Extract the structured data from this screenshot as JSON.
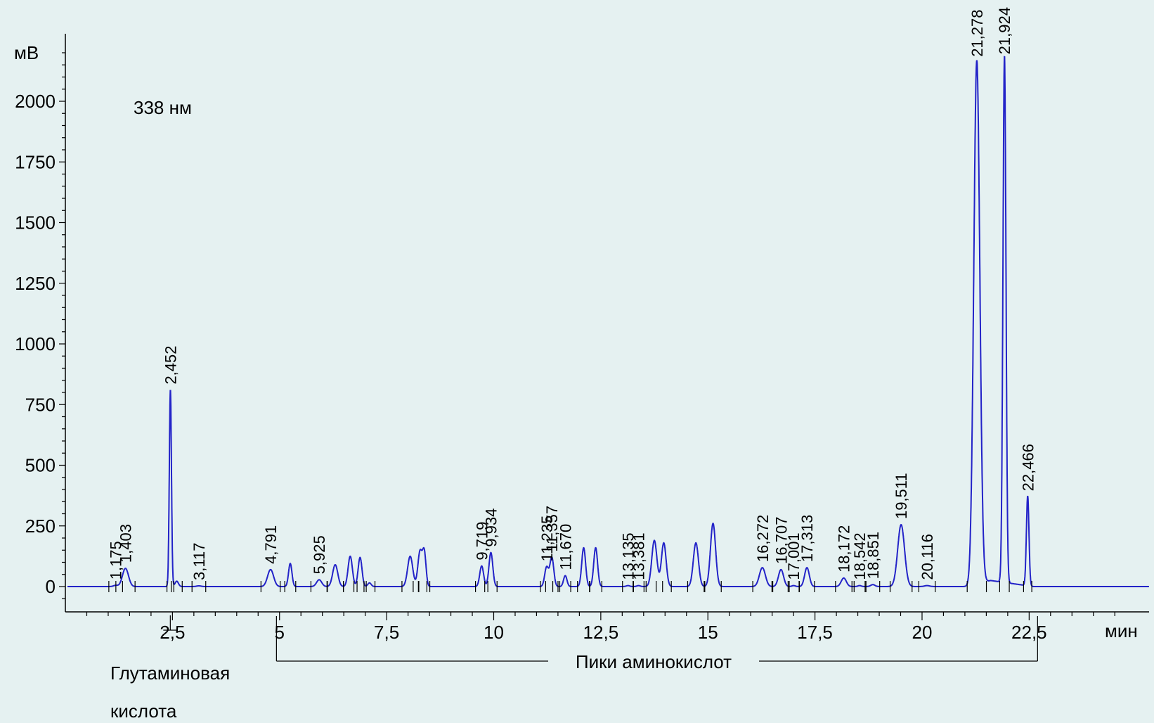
{
  "chart_data": {
    "type": "line",
    "title": "338 нм",
    "ylabel": "мВ",
    "xlabel": "мин",
    "xlim": [
      0,
      25.3
    ],
    "ylim": [
      -100,
      2300
    ],
    "x_ticks": [
      2.5,
      5,
      7.5,
      10,
      12.5,
      15,
      17.5,
      20,
      22.5
    ],
    "x_tick_labels": [
      "2,5",
      "5",
      "7,5",
      "10",
      "12,5",
      "15",
      "17,5",
      "20",
      "22,5"
    ],
    "y_ticks": [
      0,
      250,
      500,
      750,
      1000,
      1250,
      1500,
      1750,
      2000
    ],
    "y_tick_labels": [
      "0",
      "250",
      "500",
      "750",
      "1000",
      "1250",
      "1500",
      "1750",
      "2000"
    ],
    "line_color": "#2323c8",
    "peaks": [
      {
        "rt": 1.175,
        "label": "1,175",
        "height": 5,
        "width": 0.05,
        "labeled": true
      },
      {
        "rt": 1.403,
        "label": "1,403",
        "height": 75,
        "width": 0.07,
        "labeled": true
      },
      {
        "rt": 2.452,
        "label": "2,452",
        "height": 810,
        "width": 0.025,
        "labeled": true
      },
      {
        "rt": 2.6,
        "label": "",
        "height": 22,
        "width": 0.04,
        "labeled": false
      },
      {
        "rt": 3.117,
        "label": "3,117",
        "height": 3,
        "width": 0.05,
        "labeled": true
      },
      {
        "rt": 4.791,
        "label": "4,791",
        "height": 70,
        "width": 0.07,
        "labeled": true
      },
      {
        "rt": 5.25,
        "label": "",
        "height": 95,
        "width": 0.04,
        "labeled": false
      },
      {
        "rt": 5.925,
        "label": "5,925",
        "height": 28,
        "width": 0.06,
        "labeled": true
      },
      {
        "rt": 6.3,
        "label": "",
        "height": 90,
        "width": 0.06,
        "labeled": false
      },
      {
        "rt": 6.65,
        "label": "",
        "height": 125,
        "width": 0.05,
        "labeled": false
      },
      {
        "rt": 6.88,
        "label": "",
        "height": 120,
        "width": 0.045,
        "labeled": false
      },
      {
        "rt": 7.1,
        "label": "",
        "height": 15,
        "width": 0.04,
        "labeled": false
      },
      {
        "rt": 8.05,
        "label": "",
        "height": 125,
        "width": 0.06,
        "labeled": false
      },
      {
        "rt": 8.28,
        "label": "",
        "height": 145,
        "width": 0.05,
        "labeled": false
      },
      {
        "rt": 8.38,
        "label": "",
        "height": 135,
        "width": 0.04,
        "labeled": false
      },
      {
        "rt": 9.719,
        "label": "9,719",
        "height": 85,
        "width": 0.045,
        "labeled": true
      },
      {
        "rt": 9.934,
        "label": "9,934",
        "height": 140,
        "width": 0.045,
        "labeled": true
      },
      {
        "rt": 11.235,
        "label": "11,235",
        "height": 80,
        "width": 0.045,
        "labeled": true
      },
      {
        "rt": 11.357,
        "label": "11,357",
        "height": 120,
        "width": 0.045,
        "labeled": true
      },
      {
        "rt": 11.67,
        "label": "11,670",
        "height": 45,
        "width": 0.04,
        "labeled": true
      },
      {
        "rt": 12.1,
        "label": "",
        "height": 160,
        "width": 0.045,
        "labeled": false
      },
      {
        "rt": 12.38,
        "label": "",
        "height": 160,
        "width": 0.045,
        "labeled": false
      },
      {
        "rt": 13.135,
        "label": "13,135",
        "height": 4,
        "width": 0.04,
        "labeled": true
      },
      {
        "rt": 13.381,
        "label": "13,381",
        "height": 4,
        "width": 0.04,
        "labeled": true
      },
      {
        "rt": 13.75,
        "label": "",
        "height": 190,
        "width": 0.06,
        "labeled": false
      },
      {
        "rt": 13.97,
        "label": "",
        "height": 180,
        "width": 0.055,
        "labeled": false
      },
      {
        "rt": 14.72,
        "label": "",
        "height": 180,
        "width": 0.06,
        "labeled": false
      },
      {
        "rt": 15.12,
        "label": "",
        "height": 260,
        "width": 0.06,
        "labeled": false
      },
      {
        "rt": 16.272,
        "label": "16,272",
        "height": 78,
        "width": 0.07,
        "labeled": true
      },
      {
        "rt": 16.707,
        "label": "16,707",
        "height": 70,
        "width": 0.06,
        "labeled": true
      },
      {
        "rt": 17.001,
        "label": "17,001",
        "height": 4,
        "width": 0.04,
        "labeled": true
      },
      {
        "rt": 17.313,
        "label": "17,313",
        "height": 78,
        "width": 0.055,
        "labeled": true
      },
      {
        "rt": 18.172,
        "label": "18,172",
        "height": 35,
        "width": 0.06,
        "labeled": true
      },
      {
        "rt": 18.542,
        "label": "18,542",
        "height": 4,
        "width": 0.04,
        "labeled": true
      },
      {
        "rt": 18.851,
        "label": "18,851",
        "height": 8,
        "width": 0.05,
        "labeled": true
      },
      {
        "rt": 19.511,
        "label": "19,511",
        "height": 255,
        "width": 0.08,
        "labeled": true
      },
      {
        "rt": 20.116,
        "label": "20,116",
        "height": 4,
        "width": 0.06,
        "labeled": true
      },
      {
        "rt": 21.278,
        "label": "21,278",
        "height": 2160,
        "width": 0.07,
        "labeled": true
      },
      {
        "rt": 21.924,
        "label": "21,924",
        "height": 2170,
        "width": 0.035,
        "labeled": true
      },
      {
        "rt": 22.466,
        "label": "22,466",
        "height": 370,
        "width": 0.03,
        "labeled": true
      }
    ],
    "drift": {
      "start": 21.1,
      "peak": 21.6,
      "end": 22.6,
      "height": 25
    },
    "annotations": [
      {
        "text": "Глутаминовая кислота",
        "line1": "Глутаминовая",
        "line2": "кислота",
        "x": 2.45
      },
      {
        "text": "Пики аминокислот",
        "x_start": 4.6,
        "x_end": 22.5
      }
    ]
  }
}
